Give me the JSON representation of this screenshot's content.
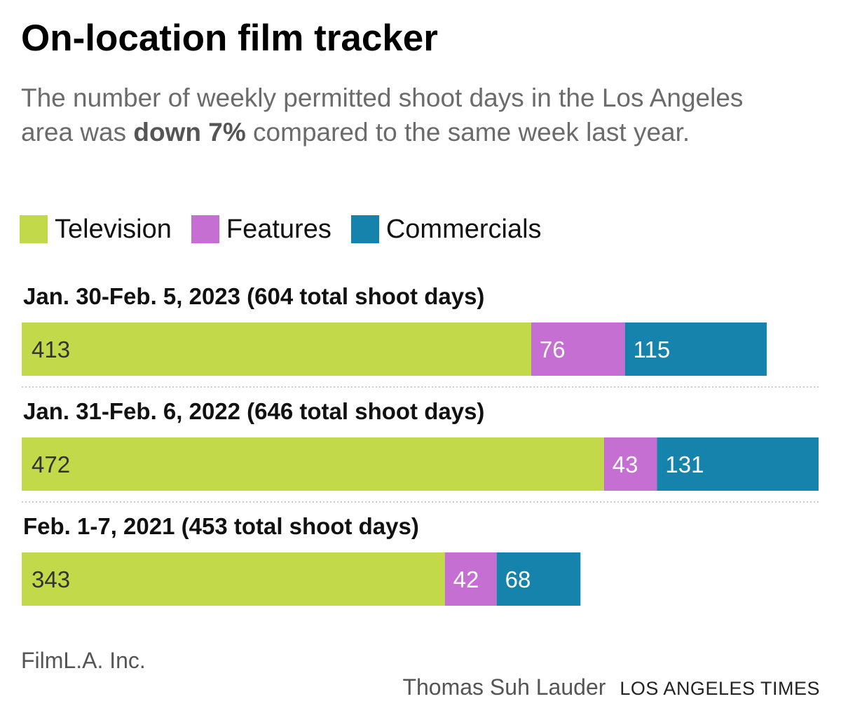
{
  "title": "On-location film tracker",
  "subtitle": {
    "before": "The number of weekly permitted shoot days in the Los Angeles area was ",
    "emphasis": "down 7%",
    "after": " compared to the same week last year."
  },
  "colors": {
    "television": "#c2d94a",
    "features": "#c56fd3",
    "commercials": "#1683ad",
    "separator": "#cccccc"
  },
  "legend": [
    {
      "name": "Television",
      "color": "#c2d94a"
    },
    {
      "name": "Features",
      "color": "#c56fd3"
    },
    {
      "name": "Commercials",
      "color": "#1683ad"
    }
  ],
  "chart_data": {
    "type": "bar",
    "orientation": "horizontal",
    "stacked": true,
    "categories": [
      "Jan. 30-Feb. 5, 2023 (604 total shoot days)",
      "Jan. 31-Feb. 6, 2022 (646 total shoot days)",
      "Feb. 1-7, 2021 (453 total shoot days)"
    ],
    "series": [
      {
        "name": "Television",
        "values": [
          413,
          472,
          343
        ]
      },
      {
        "name": "Features",
        "values": [
          76,
          43,
          42
        ]
      },
      {
        "name": "Commercials",
        "values": [
          115,
          131,
          68
        ]
      }
    ],
    "xlim": [
      0,
      646
    ],
    "grid": false,
    "legend_position": "top-left"
  },
  "source": "FilmL.A. Inc.",
  "credit": {
    "author": "Thomas Suh Lauder",
    "outlet": "LOS ANGELES TIMES"
  }
}
